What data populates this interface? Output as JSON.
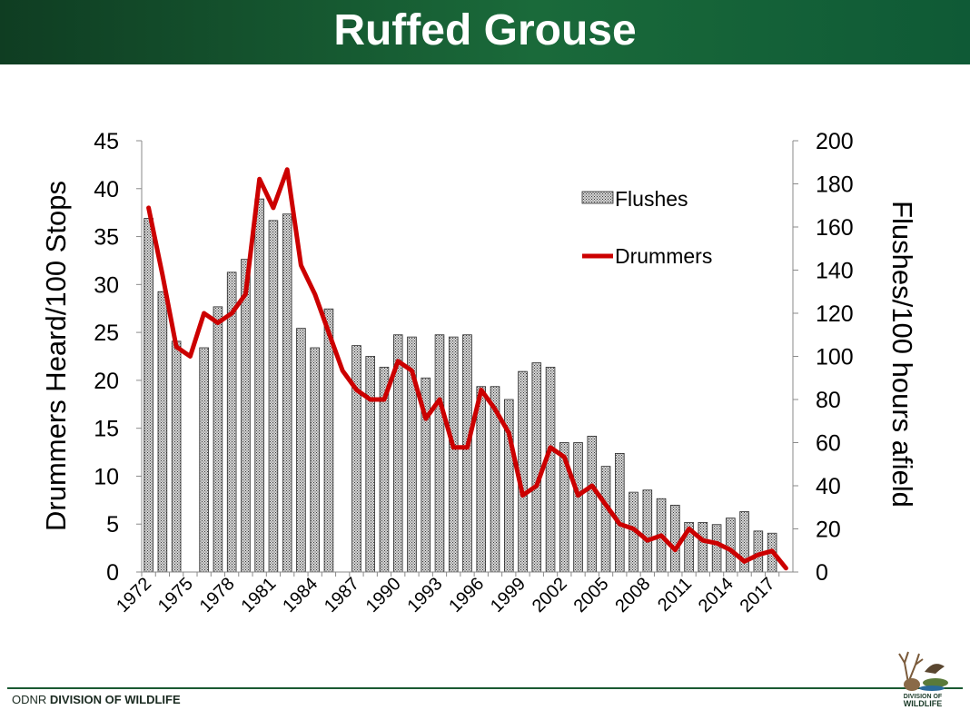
{
  "header": {
    "title": "Ruffed Grouse"
  },
  "footer": {
    "org": "ODNR",
    "division": "DIVISION OF WILDLIFE"
  },
  "logo": {
    "line1": "DIVISION OF",
    "line2": "WILDLIFE"
  },
  "colors": {
    "header_green": "#1a6a3a",
    "line_red": "#cc0000",
    "bar_fill": "#a9a9a9"
  },
  "chart_data": {
    "type": "bar",
    "title": "",
    "ylabel": "Drummers Heard/100 Stops",
    "y2label": "Flushes/100 hours afield",
    "ylim": [
      0,
      45
    ],
    "y2lim": [
      0,
      200
    ],
    "yticks": [
      "0",
      "5",
      "10",
      "15",
      "20",
      "25",
      "30",
      "35",
      "40",
      "45"
    ],
    "y2ticks": [
      "0",
      "20",
      "40",
      "60",
      "80",
      "100",
      "120",
      "140",
      "160",
      "180",
      "200"
    ],
    "legend_position": "top-right",
    "x": [
      1972,
      1973,
      1974,
      1975,
      1976,
      1977,
      1978,
      1979,
      1980,
      1981,
      1982,
      1983,
      1984,
      1985,
      1986,
      1987,
      1988,
      1989,
      1990,
      1991,
      1992,
      1993,
      1994,
      1995,
      1996,
      1997,
      1998,
      1999,
      2000,
      2001,
      2002,
      2003,
      2004,
      2005,
      2006,
      2007,
      2008,
      2009,
      2010,
      2011,
      2012,
      2013,
      2014,
      2015,
      2016,
      2017,
      2018
    ],
    "xtick_labels": [
      "1972",
      "1975",
      "1978",
      "1981",
      "1984",
      "1987",
      "1990",
      "1993",
      "1996",
      "1999",
      "2002",
      "2005",
      "2008",
      "2011",
      "2014",
      "2017"
    ],
    "series": [
      {
        "name": "Flushes",
        "type": "bar",
        "axis": "right",
        "values": [
          164,
          130,
          107,
          null,
          104,
          123,
          139,
          145,
          173,
          163,
          166,
          113,
          104,
          122,
          null,
          105,
          100,
          95,
          110,
          109,
          90,
          110,
          109,
          110,
          86,
          86,
          80,
          93,
          97,
          95,
          60,
          60,
          63,
          49,
          55,
          37,
          38,
          34,
          31,
          23,
          23,
          22,
          25,
          28,
          19,
          18,
          null
        ]
      },
      {
        "name": "Drummers",
        "type": "line",
        "axis": "left",
        "values": [
          38,
          31,
          23.5,
          22.5,
          27,
          26,
          27,
          29,
          41,
          38,
          42,
          32,
          29,
          25,
          21,
          19,
          18,
          18,
          22,
          21,
          16,
          18,
          13,
          13,
          19,
          17,
          14.5,
          8,
          9,
          13,
          12,
          8,
          9,
          7,
          5,
          4.5,
          3.3,
          3.8,
          2.3,
          4.5,
          3.3,
          3,
          2.3,
          1.1,
          1.8,
          2.2,
          0.4
        ]
      }
    ]
  }
}
